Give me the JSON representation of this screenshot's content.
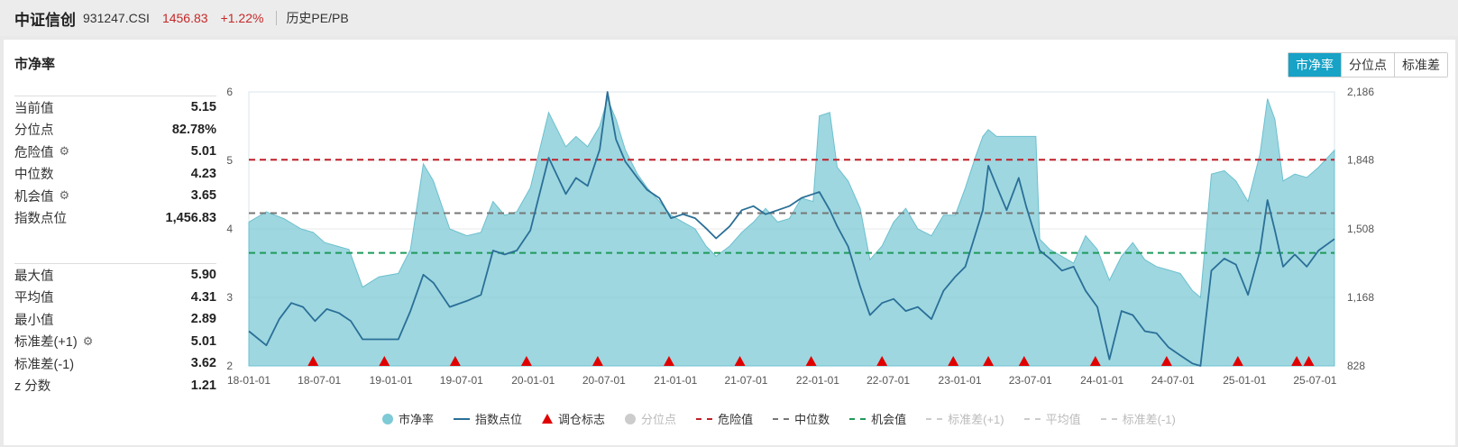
{
  "header": {
    "name": "中证信创",
    "code": "931247.CSI",
    "price": "1456.83",
    "change": "+1.22%",
    "link": "历史PE/PB"
  },
  "card": {
    "title": "市净率",
    "tabs": [
      "市净率",
      "分位点",
      "标准差"
    ]
  },
  "stats_top": [
    {
      "label": "当前值",
      "value": "5.15",
      "gear": false
    },
    {
      "label": "分位点",
      "value": "82.78%",
      "gear": false
    },
    {
      "label": "危险值",
      "value": "5.01",
      "gear": true
    },
    {
      "label": "中位数",
      "value": "4.23",
      "gear": false
    },
    {
      "label": "机会值",
      "value": "3.65",
      "gear": true
    },
    {
      "label": "指数点位",
      "value": "1,456.83",
      "gear": false
    }
  ],
  "stats_bottom": [
    {
      "label": "最大值",
      "value": "5.90",
      "gear": false
    },
    {
      "label": "平均值",
      "value": "4.31",
      "gear": false
    },
    {
      "label": "最小值",
      "value": "2.89",
      "gear": false
    },
    {
      "label": "标准差(+1)",
      "value": "5.01",
      "gear": true
    },
    {
      "label": "标准差(-1)",
      "value": "3.62",
      "gear": false
    },
    {
      "label": "z 分数",
      "value": "1.21",
      "gear": false
    }
  ],
  "legend": [
    {
      "label": "市净率",
      "kind": "dot",
      "color": "#7ecad6",
      "active": true
    },
    {
      "label": "指数点位",
      "kind": "line",
      "color": "#2a6f97",
      "active": true
    },
    {
      "label": "调仓标志",
      "kind": "triangle",
      "color": "#e00000",
      "active": true
    },
    {
      "label": "分位点",
      "kind": "dot",
      "color": "#cccccc",
      "active": false
    },
    {
      "label": "危险值",
      "kind": "dash",
      "color": "#c0202a",
      "active": true
    },
    {
      "label": "中位数",
      "kind": "dash",
      "color": "#777777",
      "active": true
    },
    {
      "label": "机会值",
      "kind": "dash",
      "color": "#1e9a5a",
      "active": true
    },
    {
      "label": "标准差(+1)",
      "kind": "dash",
      "color": "#cccccc",
      "active": false
    },
    {
      "label": "平均值",
      "kind": "dash",
      "color": "#cccccc",
      "active": false
    },
    {
      "label": "标准差(-1)",
      "kind": "dash",
      "color": "#cccccc",
      "active": false
    }
  ],
  "chart_data": {
    "type": "area",
    "x_ticks": [
      "18-01-01",
      "18-07-01",
      "19-01-01",
      "19-07-01",
      "20-01-01",
      "20-07-01",
      "21-01-01",
      "21-07-01",
      "22-01-01",
      "22-07-01",
      "23-01-01",
      "23-07-01",
      "24-01-01",
      "24-07-01",
      "25-01-01",
      "25-07-01"
    ],
    "x_range": [
      "2018-01-01",
      "2025-08-20"
    ],
    "y_left_ticks": [
      2,
      3,
      4,
      5,
      6
    ],
    "y_left_range": [
      2,
      6
    ],
    "y_right_ticks": [
      "828",
      "1,168",
      "1,508",
      "1,848",
      "2,186"
    ],
    "y_right_range": [
      828,
      2186
    ],
    "grid": true,
    "reference_lines": {
      "danger": 5.01,
      "median": 4.23,
      "opportunity": 3.65
    },
    "series": [
      {
        "name": "市净率",
        "axis": "left",
        "style": "area",
        "color": "#7ecad6",
        "points": [
          [
            "2018-01-01",
            4.1
          ],
          [
            "2018-02-15",
            4.25
          ],
          [
            "2018-04-01",
            4.15
          ],
          [
            "2018-05-15",
            4.0
          ],
          [
            "2018-06-15",
            3.95
          ],
          [
            "2018-07-15",
            3.8
          ],
          [
            "2018-08-15",
            3.75
          ],
          [
            "2018-09-15",
            3.7
          ],
          [
            "2018-10-20",
            3.15
          ],
          [
            "2018-12-01",
            3.3
          ],
          [
            "2019-01-20",
            3.35
          ],
          [
            "2019-02-20",
            3.7
          ],
          [
            "2019-03-25",
            4.95
          ],
          [
            "2019-04-20",
            4.7
          ],
          [
            "2019-06-01",
            4.0
          ],
          [
            "2019-07-15",
            3.9
          ],
          [
            "2019-08-20",
            3.95
          ],
          [
            "2019-09-20",
            4.4
          ],
          [
            "2019-10-20",
            4.2
          ],
          [
            "2019-11-20",
            4.25
          ],
          [
            "2019-12-25",
            4.6
          ],
          [
            "2020-02-10",
            5.7
          ],
          [
            "2020-03-25",
            5.2
          ],
          [
            "2020-04-20",
            5.35
          ],
          [
            "2020-05-20",
            5.2
          ],
          [
            "2020-06-20",
            5.5
          ],
          [
            "2020-07-10",
            5.9
          ],
          [
            "2020-08-01",
            5.6
          ],
          [
            "2020-08-25",
            5.15
          ],
          [
            "2020-09-25",
            4.8
          ],
          [
            "2020-10-20",
            4.6
          ],
          [
            "2020-11-20",
            4.4
          ],
          [
            "2020-12-20",
            4.2
          ],
          [
            "2021-01-20",
            4.1
          ],
          [
            "2021-02-20",
            4.0
          ],
          [
            "2021-03-20",
            3.75
          ],
          [
            "2021-04-15",
            3.6
          ],
          [
            "2021-05-20",
            3.75
          ],
          [
            "2021-06-20",
            3.95
          ],
          [
            "2021-07-20",
            4.1
          ],
          [
            "2021-08-20",
            4.3
          ],
          [
            "2021-09-20",
            4.1
          ],
          [
            "2021-10-20",
            4.15
          ],
          [
            "2021-11-20",
            4.45
          ],
          [
            "2021-12-20",
            4.4
          ],
          [
            "2022-01-05",
            5.65
          ],
          [
            "2022-02-01",
            5.7
          ],
          [
            "2022-02-20",
            4.9
          ],
          [
            "2022-03-20",
            4.7
          ],
          [
            "2022-04-20",
            4.3
          ],
          [
            "2022-05-15",
            3.55
          ],
          [
            "2022-06-15",
            3.75
          ],
          [
            "2022-07-15",
            4.1
          ],
          [
            "2022-08-15",
            4.3
          ],
          [
            "2022-09-15",
            4.0
          ],
          [
            "2022-10-20",
            3.9
          ],
          [
            "2022-11-20",
            4.2
          ],
          [
            "2022-12-20",
            4.2
          ],
          [
            "2023-01-15",
            4.6
          ],
          [
            "2023-02-10",
            5.05
          ],
          [
            "2023-03-01",
            5.35
          ],
          [
            "2023-03-15",
            5.45
          ],
          [
            "2023-04-05",
            5.35
          ],
          [
            "2023-07-15",
            5.35
          ],
          [
            "2023-07-25",
            3.85
          ],
          [
            "2023-08-20",
            3.7
          ],
          [
            "2023-09-20",
            3.6
          ],
          [
            "2023-10-20",
            3.5
          ],
          [
            "2023-11-20",
            3.9
          ],
          [
            "2023-12-20",
            3.7
          ],
          [
            "2024-01-20",
            3.25
          ],
          [
            "2024-02-20",
            3.6
          ],
          [
            "2024-03-20",
            3.8
          ],
          [
            "2024-04-20",
            3.55
          ],
          [
            "2024-05-20",
            3.45
          ],
          [
            "2024-06-20",
            3.4
          ],
          [
            "2024-07-20",
            3.35
          ],
          [
            "2024-08-20",
            3.1
          ],
          [
            "2024-09-10",
            3.0
          ],
          [
            "2024-10-08",
            4.8
          ],
          [
            "2024-11-10",
            4.85
          ],
          [
            "2024-12-10",
            4.7
          ],
          [
            "2025-01-10",
            4.4
          ],
          [
            "2025-02-10",
            5.1
          ],
          [
            "2025-03-01",
            5.9
          ],
          [
            "2025-03-20",
            5.6
          ],
          [
            "2025-04-10",
            4.7
          ],
          [
            "2025-05-10",
            4.8
          ],
          [
            "2025-06-10",
            4.75
          ],
          [
            "2025-07-10",
            4.9
          ],
          [
            "2025-08-20",
            5.15
          ]
        ]
      },
      {
        "name": "指数点位",
        "axis": "right",
        "style": "line",
        "color": "#2a6f97",
        "points": [
          [
            "2018-01-01",
            1000
          ],
          [
            "2018-02-15",
            930
          ],
          [
            "2018-03-20",
            1060
          ],
          [
            "2018-04-20",
            1140
          ],
          [
            "2018-05-20",
            1120
          ],
          [
            "2018-06-20",
            1050
          ],
          [
            "2018-07-20",
            1110
          ],
          [
            "2018-08-20",
            1090
          ],
          [
            "2018-09-20",
            1050
          ],
          [
            "2018-10-20",
            960
          ],
          [
            "2018-12-01",
            960
          ],
          [
            "2019-01-20",
            960
          ],
          [
            "2019-02-20",
            1100
          ],
          [
            "2019-03-25",
            1280
          ],
          [
            "2019-04-20",
            1240
          ],
          [
            "2019-06-01",
            1120
          ],
          [
            "2019-07-15",
            1150
          ],
          [
            "2019-08-20",
            1180
          ],
          [
            "2019-09-20",
            1400
          ],
          [
            "2019-10-20",
            1380
          ],
          [
            "2019-11-20",
            1400
          ],
          [
            "2019-12-25",
            1500
          ],
          [
            "2020-02-10",
            1860
          ],
          [
            "2020-03-25",
            1680
          ],
          [
            "2020-04-20",
            1760
          ],
          [
            "2020-05-20",
            1720
          ],
          [
            "2020-06-20",
            1900
          ],
          [
            "2020-07-10",
            2186
          ],
          [
            "2020-08-01",
            1950
          ],
          [
            "2020-08-25",
            1840
          ],
          [
            "2020-09-25",
            1760
          ],
          [
            "2020-10-20",
            1700
          ],
          [
            "2020-11-20",
            1660
          ],
          [
            "2020-12-20",
            1560
          ],
          [
            "2021-01-20",
            1580
          ],
          [
            "2021-02-20",
            1560
          ],
          [
            "2021-03-20",
            1510
          ],
          [
            "2021-04-15",
            1460
          ],
          [
            "2021-05-20",
            1520
          ],
          [
            "2021-06-20",
            1600
          ],
          [
            "2021-07-20",
            1620
          ],
          [
            "2021-08-20",
            1580
          ],
          [
            "2021-09-20",
            1600
          ],
          [
            "2021-10-20",
            1620
          ],
          [
            "2021-11-20",
            1660
          ],
          [
            "2021-12-20",
            1680
          ],
          [
            "2022-01-05",
            1690
          ],
          [
            "2022-02-01",
            1600
          ],
          [
            "2022-02-20",
            1520
          ],
          [
            "2022-03-20",
            1420
          ],
          [
            "2022-04-20",
            1220
          ],
          [
            "2022-05-15",
            1080
          ],
          [
            "2022-06-15",
            1140
          ],
          [
            "2022-07-15",
            1160
          ],
          [
            "2022-08-15",
            1100
          ],
          [
            "2022-09-15",
            1120
          ],
          [
            "2022-10-20",
            1060
          ],
          [
            "2022-11-20",
            1200
          ],
          [
            "2022-12-20",
            1270
          ],
          [
            "2023-01-15",
            1320
          ],
          [
            "2023-02-10",
            1480
          ],
          [
            "2023-03-01",
            1600
          ],
          [
            "2023-03-15",
            1820
          ],
          [
            "2023-04-05",
            1720
          ],
          [
            "2023-05-01",
            1600
          ],
          [
            "2023-06-01",
            1760
          ],
          [
            "2023-06-20",
            1620
          ],
          [
            "2023-07-25",
            1400
          ],
          [
            "2023-08-20",
            1360
          ],
          [
            "2023-09-20",
            1300
          ],
          [
            "2023-10-20",
            1320
          ],
          [
            "2023-11-20",
            1200
          ],
          [
            "2023-12-20",
            1120
          ],
          [
            "2024-01-20",
            860
          ],
          [
            "2024-02-20",
            1100
          ],
          [
            "2024-03-20",
            1080
          ],
          [
            "2024-04-20",
            1000
          ],
          [
            "2024-05-20",
            990
          ],
          [
            "2024-06-20",
            920
          ],
          [
            "2024-07-20",
            880
          ],
          [
            "2024-08-20",
            840
          ],
          [
            "2024-09-10",
            828
          ],
          [
            "2024-10-08",
            1300
          ],
          [
            "2024-11-10",
            1360
          ],
          [
            "2024-12-10",
            1330
          ],
          [
            "2025-01-10",
            1180
          ],
          [
            "2025-02-10",
            1400
          ],
          [
            "2025-03-01",
            1650
          ],
          [
            "2025-03-20",
            1500
          ],
          [
            "2025-04-10",
            1320
          ],
          [
            "2025-05-10",
            1380
          ],
          [
            "2025-06-10",
            1320
          ],
          [
            "2025-07-10",
            1400
          ],
          [
            "2025-08-20",
            1456.83
          ]
        ]
      }
    ],
    "rebalance_markers": [
      "2018-06-15",
      "2018-12-15",
      "2019-06-15",
      "2019-12-15",
      "2020-06-15",
      "2020-12-15",
      "2021-06-15",
      "2021-12-15",
      "2022-06-15",
      "2022-12-15",
      "2023-03-15",
      "2023-06-15",
      "2023-12-15",
      "2024-06-15",
      "2024-12-15",
      "2025-05-15",
      "2025-06-15"
    ]
  }
}
